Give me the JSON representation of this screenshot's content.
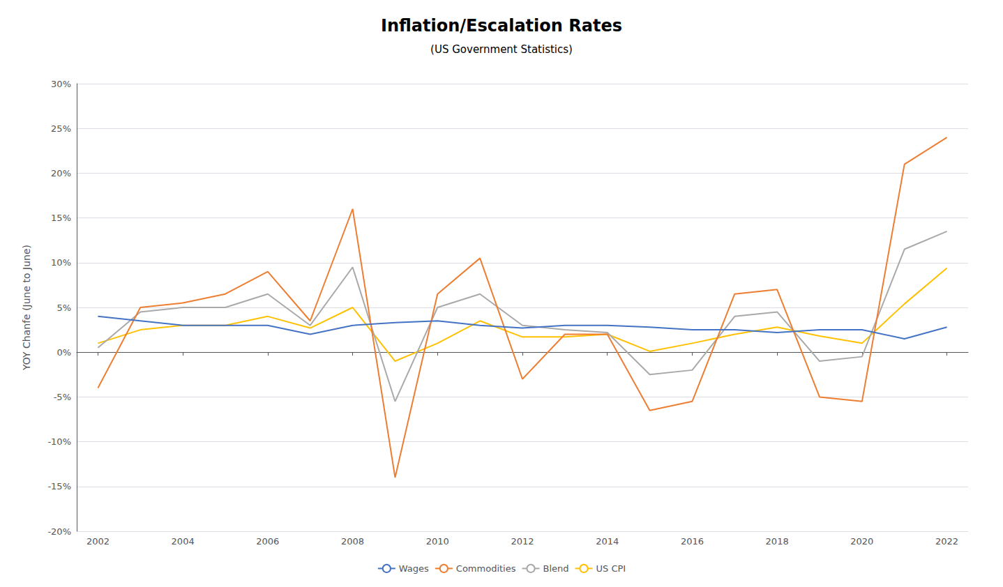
{
  "chart_data": {
    "type": "line",
    "title": "Inflation/Escalation Rates",
    "subtitle": "(US Government Statistics)",
    "ylabel": "YOY Chanfe (June to June)",
    "x": [
      2002,
      2003,
      2004,
      2005,
      2006,
      2007,
      2008,
      2009,
      2010,
      2011,
      2012,
      2013,
      2014,
      2015,
      2016,
      2017,
      2018,
      2019,
      2020,
      2021,
      2022
    ],
    "series": [
      {
        "name": "Wages",
        "color": "#4472C4",
        "values": [
          0.04,
          0.035,
          0.03,
          0.03,
          0.03,
          0.02,
          0.03,
          0.033,
          0.035,
          0.03,
          0.027,
          0.03,
          0.03,
          0.028,
          0.025,
          0.025,
          0.022,
          0.025,
          0.025,
          0.015,
          0.028
        ]
      },
      {
        "name": "Commodities",
        "color": "#ED7D31",
        "values": [
          -0.04,
          0.05,
          0.055,
          0.065,
          0.09,
          0.035,
          0.16,
          -0.14,
          0.065,
          0.105,
          -0.03,
          0.02,
          0.02,
          -0.065,
          -0.055,
          0.065,
          0.07,
          -0.05,
          -0.055,
          0.21,
          0.24
        ]
      },
      {
        "name": "Blend",
        "color": "#A9A9A9",
        "values": [
          0.005,
          0.045,
          0.05,
          0.05,
          0.065,
          0.03,
          0.095,
          -0.055,
          0.05,
          0.065,
          0.03,
          0.025,
          0.022,
          -0.025,
          -0.02,
          0.04,
          0.045,
          -0.01,
          -0.005,
          0.115,
          0.135
        ]
      },
      {
        "name": "US CPI",
        "color": "#FFC000",
        "values": [
          0.01,
          0.025,
          0.03,
          0.03,
          0.04,
          0.027,
          0.05,
          -0.01,
          0.01,
          0.035,
          0.017,
          0.017,
          0.02,
          0.001,
          0.01,
          0.02,
          0.028,
          0.018,
          0.01,
          0.054,
          0.094
        ]
      }
    ],
    "xlim": [
      2001.5,
      2022.5
    ],
    "xticks": [
      2002,
      2004,
      2006,
      2008,
      2010,
      2012,
      2014,
      2016,
      2018,
      2020,
      2022
    ],
    "ylim": [
      -0.2,
      0.3
    ],
    "yticks": [
      {
        "value": -0.2,
        "label": "-20%"
      },
      {
        "value": -0.15,
        "label": "-15%"
      },
      {
        "value": -0.1,
        "label": "-10%"
      },
      {
        "value": -0.05,
        "label": "-5%"
      },
      {
        "value": 0.0,
        "label": "0%"
      },
      {
        "value": 0.05,
        "label": "5%"
      },
      {
        "value": 0.1,
        "label": "10%"
      },
      {
        "value": 0.15,
        "label": "15%"
      },
      {
        "value": 0.2,
        "label": "20%"
      },
      {
        "value": 0.25,
        "label": "25%"
      },
      {
        "value": 0.3,
        "label": "30%"
      }
    ],
    "grid": true,
    "legend": "bottom"
  }
}
